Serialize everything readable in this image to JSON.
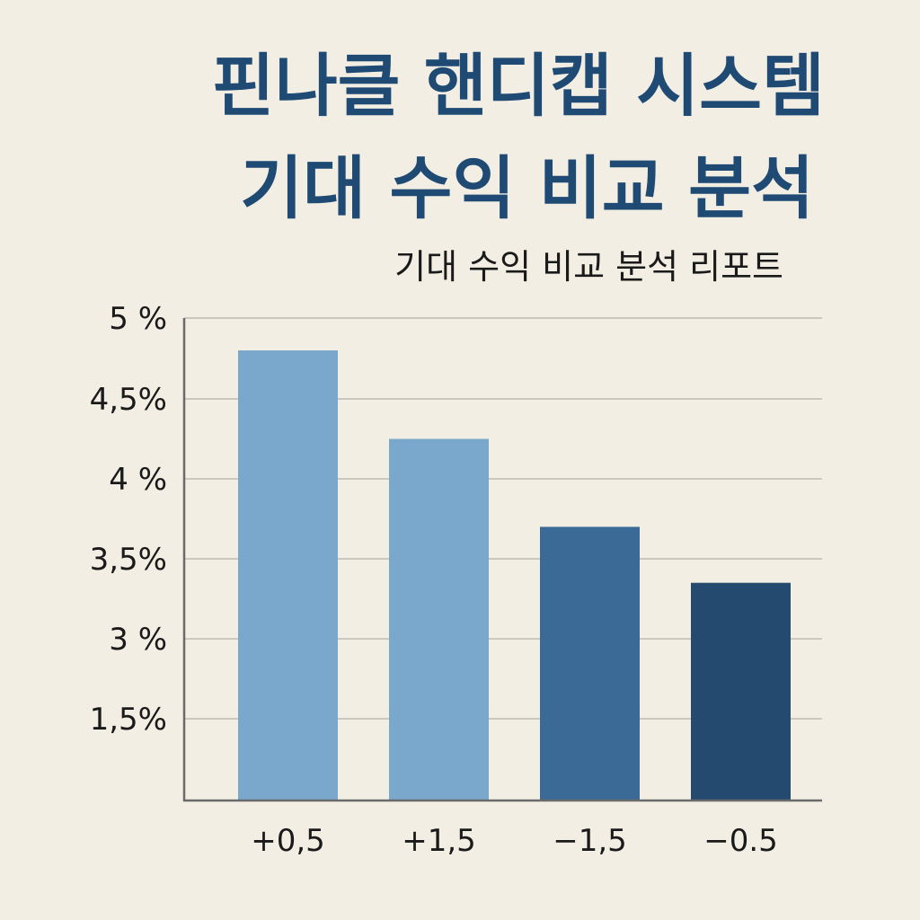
{
  "chart_data": {
    "type": "bar",
    "title": [
      "핀나클  핸디캡 시스템",
      "기대 수익 비교 분석"
    ],
    "subtitle": "기대 수익 비교 분석 리포트",
    "xlabel": "",
    "ylabel": "",
    "categories": [
      "+0,5",
      "+1,5",
      "−1,5",
      "−0.5"
    ],
    "values": [
      4.8,
      4.25,
      3.7,
      3.35
    ],
    "y_ticks": [
      {
        "label": "5 %",
        "value": 5
      },
      {
        "label": "4,5%",
        "value": 4.5
      },
      {
        "label": "4 %",
        "value": 4
      },
      {
        "label": "3,5%",
        "value": 3.5
      },
      {
        "label": "3 %",
        "value": 3
      },
      {
        "label": "1,5%",
        "value": 1.5
      }
    ],
    "bar_colors": [
      "#7aa8cc",
      "#7aa8cc",
      "#3a6a95",
      "#244a70"
    ],
    "grid": true,
    "legend": "none"
  }
}
